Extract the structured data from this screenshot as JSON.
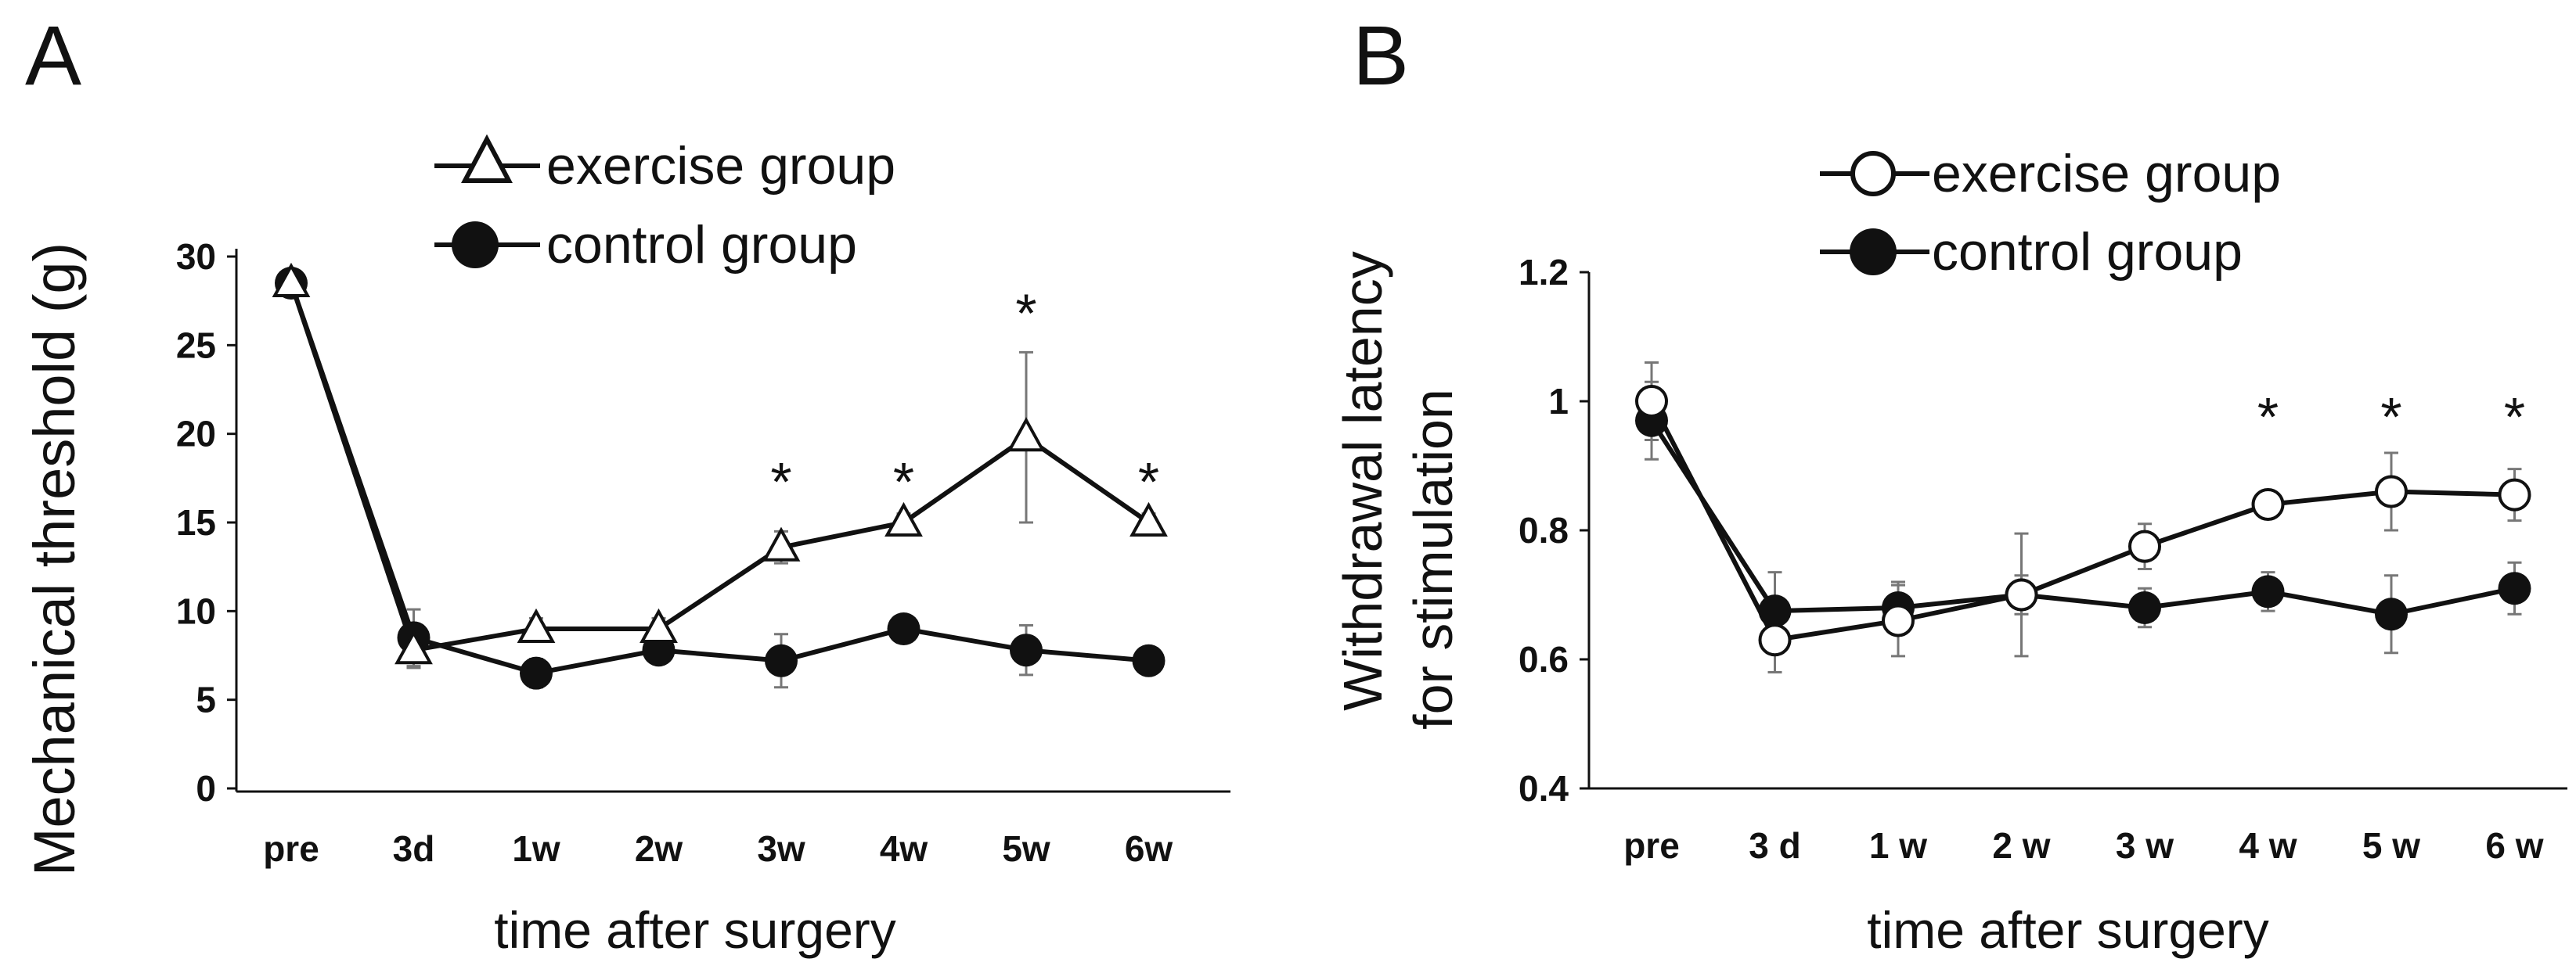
{
  "chart_data": [
    {
      "type": "line",
      "panel_label": "A",
      "ylabel": "Mechanical threshold (g)",
      "xlabel": "time after surgery",
      "categories": [
        "pre",
        "3d",
        "1w",
        "2w",
        "3w",
        "4w",
        "5w",
        "6w"
      ],
      "ylim": [
        0,
        30
      ],
      "yticks": [
        0,
        5,
        10,
        15,
        20,
        25,
        30
      ],
      "ytick_labels": [
        "0",
        "5",
        "10",
        "15",
        "20",
        "25",
        "30"
      ],
      "grid": false,
      "legend_position": "top",
      "series": [
        {
          "name": "exercise group",
          "marker": "open-triangle",
          "values": [
            28.5,
            7.8,
            9.0,
            9.0,
            13.6,
            15.0,
            19.8,
            15.0
          ],
          "errors": [
            0.5,
            1.0,
            0.6,
            0.6,
            0.9,
            0.5,
            4.8,
            0.5
          ]
        },
        {
          "name": "control group",
          "marker": "filled-circle",
          "values": [
            28.5,
            8.5,
            6.5,
            7.8,
            7.2,
            9.0,
            7.8,
            7.2
          ],
          "errors": [
            0.5,
            1.6,
            0.8,
            0.6,
            1.5,
            0.6,
            1.4,
            0.5
          ]
        }
      ],
      "significance": [
        {
          "category": "3w",
          "mark": "*",
          "y": 18.0
        },
        {
          "category": "4w",
          "mark": "*",
          "y": 18.0
        },
        {
          "category": "5w",
          "mark": "*",
          "y": 27.5
        },
        {
          "category": "6w",
          "mark": "*",
          "y": 18.0
        }
      ]
    },
    {
      "type": "line",
      "panel_label": "B",
      "ylabel": "Withdrawal latency",
      "ylabel_line2": "for stimulation",
      "xlabel": "time after surgery",
      "categories": [
        "pre",
        "3 d",
        "1 w",
        "2 w",
        "3 w",
        "4 w",
        "5 w",
        "6 w"
      ],
      "ylim": [
        0.4,
        1.2
      ],
      "yticks": [
        0.4,
        0.6,
        0.8,
        1.0,
        1.2
      ],
      "ytick_labels": [
        "0.4",
        "0.6",
        "0.8",
        "1",
        "1.2"
      ],
      "grid": false,
      "legend_position": "top",
      "series": [
        {
          "name": "exercise group",
          "marker": "open-circle",
          "values": [
            1.0,
            0.63,
            0.66,
            0.7,
            0.775,
            0.84,
            0.86,
            0.855
          ],
          "errors": [
            0.06,
            0.05,
            0.055,
            0.095,
            0.035,
            0.01,
            0.06,
            0.04
          ]
        },
        {
          "name": "control group",
          "marker": "filled-circle",
          "values": [
            0.97,
            0.675,
            0.68,
            0.7,
            0.68,
            0.705,
            0.67,
            0.71
          ],
          "errors": [
            0.06,
            0.06,
            0.04,
            0.03,
            0.03,
            0.03,
            0.06,
            0.04
          ]
        }
      ],
      "significance": [
        {
          "category": "4 w",
          "mark": "*",
          "y": 0.995
        },
        {
          "category": "5 w",
          "mark": "*",
          "y": 0.995
        },
        {
          "category": "6 w",
          "mark": "*",
          "y": 0.995
        }
      ]
    }
  ]
}
